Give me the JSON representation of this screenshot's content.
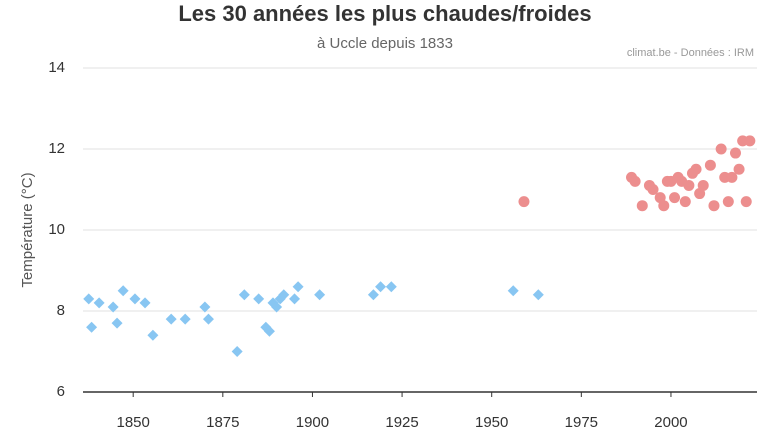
{
  "chart_data": {
    "type": "scatter",
    "title": "Les 30 années les plus chaudes/froides",
    "subtitle": "à Uccle depuis 1833",
    "source": "climat.be - Données : IRM",
    "ylabel": "Température (°C)",
    "xlim": [
      1836,
      2024
    ],
    "ylim": [
      6,
      14
    ],
    "xticks": [
      1850,
      1875,
      1900,
      1925,
      1950,
      1975,
      2000
    ],
    "yticks": [
      6,
      8,
      10,
      12,
      14
    ],
    "grid": true,
    "series": [
      {
        "color": "#88c6f2",
        "marker": "diamond",
        "x": [
          1837.6,
          1838.4,
          1840.5,
          1844.4,
          1845.5,
          1847.2,
          1850.5,
          1853.3,
          1855.5,
          1860.6,
          1864.5,
          1870,
          1871,
          1879,
          1881,
          1885,
          1887,
          1888,
          1889,
          1890,
          1891,
          1892,
          1895,
          1896,
          1902,
          1917,
          1919,
          1922,
          1956,
          1963
        ],
        "values": [
          8.3,
          7.6,
          8.2,
          8.1,
          7.7,
          8.5,
          8.3,
          8.2,
          7.4,
          7.8,
          7.8,
          8.1,
          7.8,
          7.0,
          8.4,
          8.3,
          7.6,
          7.5,
          8.2,
          8.1,
          8.3,
          8.4,
          8.3,
          8.6,
          8.4,
          8.4,
          8.6,
          8.6,
          8.5,
          8.4
        ]
      },
      {
        "color": "#ec8e8e",
        "marker": "circle",
        "x": [
          1959,
          1989,
          1990,
          1992,
          1994,
          1995,
          1997,
          1998,
          1999,
          2000,
          2001,
          2002,
          2003,
          2004,
          2005,
          2006,
          2007,
          2008,
          2009,
          2011,
          2012,
          2014,
          2015,
          2016,
          2017,
          2018,
          2019,
          2020,
          2021,
          2022
        ],
        "values": [
          10.7,
          11.3,
          11.2,
          10.6,
          11.1,
          11.0,
          10.8,
          10.6,
          11.2,
          11.2,
          10.8,
          11.3,
          11.2,
          10.7,
          11.1,
          11.4,
          11.5,
          10.9,
          11.1,
          11.6,
          10.6,
          12.0,
          11.3,
          10.7,
          11.3,
          11.9,
          11.5,
          12.2,
          10.7,
          12.2
        ]
      }
    ]
  }
}
